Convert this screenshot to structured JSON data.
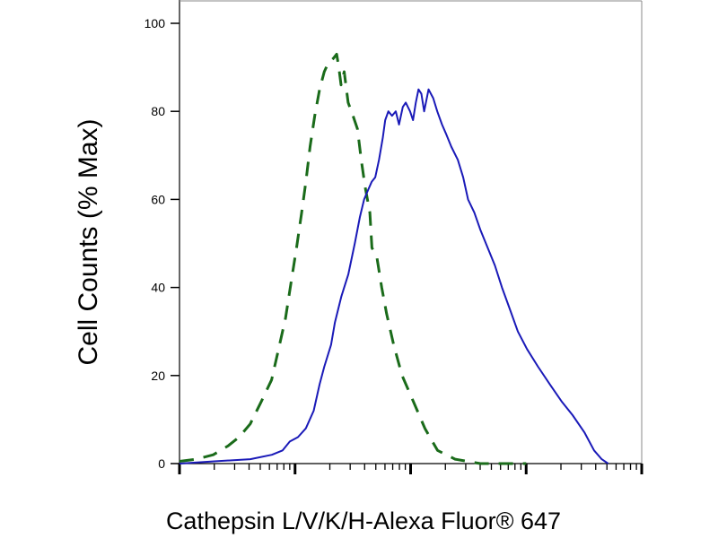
{
  "chart_data": {
    "type": "line",
    "title": "",
    "xlabel": "Cathepsin L/V/K/H-Alexa Fluor® 647",
    "ylabel": "Cell Counts (% Max)",
    "x_scale": "log",
    "xlim": [
      1,
      10000
    ],
    "ylim": [
      0,
      100
    ],
    "yticks": [
      0,
      20,
      40,
      60,
      80,
      100
    ],
    "ytick_labels": [
      "0",
      "20",
      "40",
      "60",
      "80",
      "100"
    ],
    "xtick_labels": [],
    "grid": false,
    "legend": "none",
    "series": [
      {
        "style": "dashed",
        "color": "#1a6b1a",
        "points": [
          [
            1.0,
            0.5
          ],
          [
            1.4,
            1
          ],
          [
            1.96,
            2
          ],
          [
            2.62,
            4
          ],
          [
            3.28,
            6
          ],
          [
            4.09,
            9
          ],
          [
            5.08,
            14
          ],
          [
            6.27,
            19
          ],
          [
            7.2,
            26
          ],
          [
            8.27,
            33
          ],
          [
            9.22,
            41
          ],
          [
            10.3,
            49
          ],
          [
            11.4,
            57
          ],
          [
            12.4,
            64
          ],
          [
            13.5,
            72
          ],
          [
            14.8,
            79
          ],
          [
            16.3,
            85
          ],
          [
            17.9,
            89
          ],
          [
            19.4,
            91
          ],
          [
            21.4,
            92
          ],
          [
            22.9,
            93
          ],
          [
            23.9,
            90
          ],
          [
            25.0,
            86
          ],
          [
            26.6,
            89
          ],
          [
            28.8,
            82
          ],
          [
            31.7,
            79
          ],
          [
            34.7,
            76
          ],
          [
            37.4,
            69
          ],
          [
            40.3,
            63
          ],
          [
            44.4,
            57
          ],
          [
            46.3,
            49
          ],
          [
            51.0,
            47
          ],
          [
            56.2,
            40
          ],
          [
            62.0,
            34
          ],
          [
            71.3,
            27
          ],
          [
            84.4,
            20
          ],
          [
            106,
            14
          ],
          [
            133,
            8
          ],
          [
            171,
            3
          ],
          [
            243,
            1
          ],
          [
            401,
            0
          ],
          [
            1000,
            0
          ]
        ]
      },
      {
        "style": "solid",
        "color": "#1a1ab8",
        "points": [
          [
            1.0,
            0
          ],
          [
            2.0,
            0.5
          ],
          [
            4.1,
            1
          ],
          [
            6.3,
            2
          ],
          [
            7.8,
            3
          ],
          [
            9.0,
            5
          ],
          [
            10.6,
            6
          ],
          [
            12.4,
            8
          ],
          [
            14.5,
            12
          ],
          [
            16.3,
            18
          ],
          [
            17.9,
            22
          ],
          [
            20.5,
            27
          ],
          [
            22.1,
            32
          ],
          [
            25.2,
            38
          ],
          [
            28.9,
            43
          ],
          [
            32.9,
            50
          ],
          [
            36.4,
            56
          ],
          [
            39.6,
            60
          ],
          [
            42.6,
            62
          ],
          [
            46.0,
            64
          ],
          [
            49.4,
            65
          ],
          [
            53.3,
            69
          ],
          [
            57.4,
            74
          ],
          [
            60.3,
            78
          ],
          [
            64.2,
            80
          ],
          [
            69.1,
            79
          ],
          [
            74.5,
            80
          ],
          [
            79.4,
            77
          ],
          [
            85.6,
            81
          ],
          [
            90.8,
            82
          ],
          [
            99.0,
            80
          ],
          [
            105,
            78
          ],
          [
            111,
            82
          ],
          [
            117,
            85
          ],
          [
            124,
            84
          ],
          [
            131,
            80
          ],
          [
            143,
            85
          ],
          [
            157,
            83
          ],
          [
            170,
            80
          ],
          [
            187,
            77
          ],
          [
            202,
            75
          ],
          [
            225,
            72
          ],
          [
            256,
            69
          ],
          [
            285,
            65
          ],
          [
            314,
            60
          ],
          [
            356,
            57
          ],
          [
            403,
            53
          ],
          [
            465,
            49
          ],
          [
            536,
            45
          ],
          [
            618,
            40
          ],
          [
            724,
            35
          ],
          [
            848,
            30
          ],
          [
            1018,
            26
          ],
          [
            1268,
            22
          ],
          [
            1603,
            18
          ],
          [
            2044,
            14
          ],
          [
            2525,
            11
          ],
          [
            3204,
            7
          ],
          [
            3869,
            3
          ],
          [
            4507,
            1
          ],
          [
            5120,
            0
          ]
        ]
      }
    ]
  }
}
